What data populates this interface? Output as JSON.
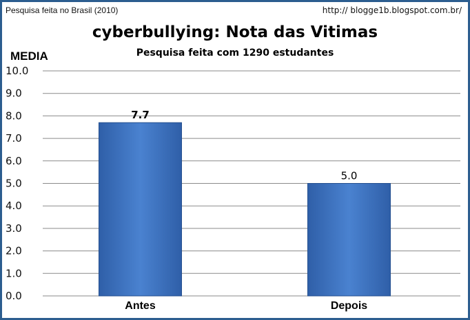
{
  "header": {
    "source_note": "Pesquisa feita no Brasil (2010)",
    "url": "http://   blogge1b.blogspot.com.br/"
  },
  "chart_data": {
    "type": "bar",
    "title": "cyberbullying: Nota das Vitimas",
    "subtitle": "Pesquisa feita com 1290 estudantes",
    "ylabel": "MEDIA",
    "xlabel": "",
    "categories": [
      "Antes",
      "Depois"
    ],
    "values": [
      7.7,
      5.0
    ],
    "data_labels": [
      "7.7",
      "5.0"
    ],
    "yticks": [
      "0.0",
      "1.0",
      "2.0",
      "3.0",
      "4.0",
      "5.0",
      "6.0",
      "7.0",
      "8.0",
      "9.0",
      "10.0"
    ],
    "ylim": [
      0,
      10
    ],
    "grid": true,
    "legend": "none",
    "bar_color": "#3a6fbf",
    "grid_color": "#8a8a8a",
    "frame_color": "#2c5d8f"
  }
}
